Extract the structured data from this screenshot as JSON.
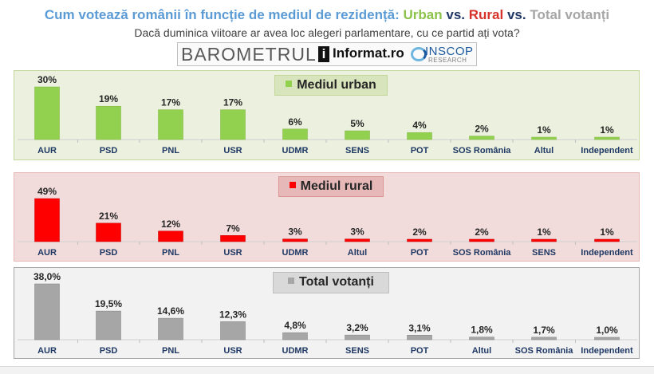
{
  "header": {
    "title_prefix": "Cum votează românii în funcție de mediul de rezidență:",
    "title_urban": "Urban",
    "title_vs1": "vs.",
    "title_rural": "Rural",
    "title_vs2": "vs.",
    "title_total": "Total votanți",
    "subtitle": "Dacă duminica viitoare ar avea loc alegeri parlamentare, cu ce partid ați vota?"
  },
  "logos": {
    "barometrul": "BAROMETRUL",
    "informat_mark": "i",
    "informat_text": "Informat.ro",
    "inscop_name": "INSCOP",
    "inscop_sub": "RESEARCH"
  },
  "colors": {
    "urban": "#92d050",
    "rural": "#ff0000",
    "total": "#a6a6a6"
  },
  "chart_data": [
    {
      "type": "bar",
      "title": "Mediul urban",
      "categories": [
        "AUR",
        "PSD",
        "PNL",
        "USR",
        "UDMR",
        "SENS",
        "POT",
        "SOS România",
        "Altul",
        "Independent"
      ],
      "values": [
        30,
        19,
        17,
        17,
        6,
        5,
        4,
        2,
        1,
        1
      ],
      "value_labels": [
        "30%",
        "19%",
        "17%",
        "17%",
        "6%",
        "5%",
        "4%",
        "2%",
        "1%",
        "1%"
      ],
      "ylim": [
        0,
        30
      ]
    },
    {
      "type": "bar",
      "title": "Mediul rural",
      "categories": [
        "AUR",
        "PSD",
        "PNL",
        "USR",
        "UDMR",
        "Altul",
        "POT",
        "SOS România",
        "SENS",
        "Independent"
      ],
      "values": [
        49,
        21,
        12,
        7,
        3,
        3,
        2,
        2,
        1,
        1
      ],
      "value_labels": [
        "49%",
        "21%",
        "12%",
        "7%",
        "3%",
        "3%",
        "2%",
        "2%",
        "1%",
        "1%"
      ],
      "ylim": [
        0,
        49
      ]
    },
    {
      "type": "bar",
      "title": "Total votanți",
      "categories": [
        "AUR",
        "PSD",
        "PNL",
        "USR",
        "UDMR",
        "SENS",
        "POT",
        "Altul",
        "SOS România",
        "Independent"
      ],
      "values": [
        38.0,
        19.5,
        14.6,
        12.3,
        4.8,
        3.2,
        3.1,
        1.8,
        1.7,
        1.0
      ],
      "value_labels": [
        "38,0%",
        "19,5%",
        "14,6%",
        "12,3%",
        "4,8%",
        "3,2%",
        "3,1%",
        "1,8%",
        "1,7%",
        "1,0%"
      ],
      "ylim": [
        0,
        38
      ]
    }
  ]
}
